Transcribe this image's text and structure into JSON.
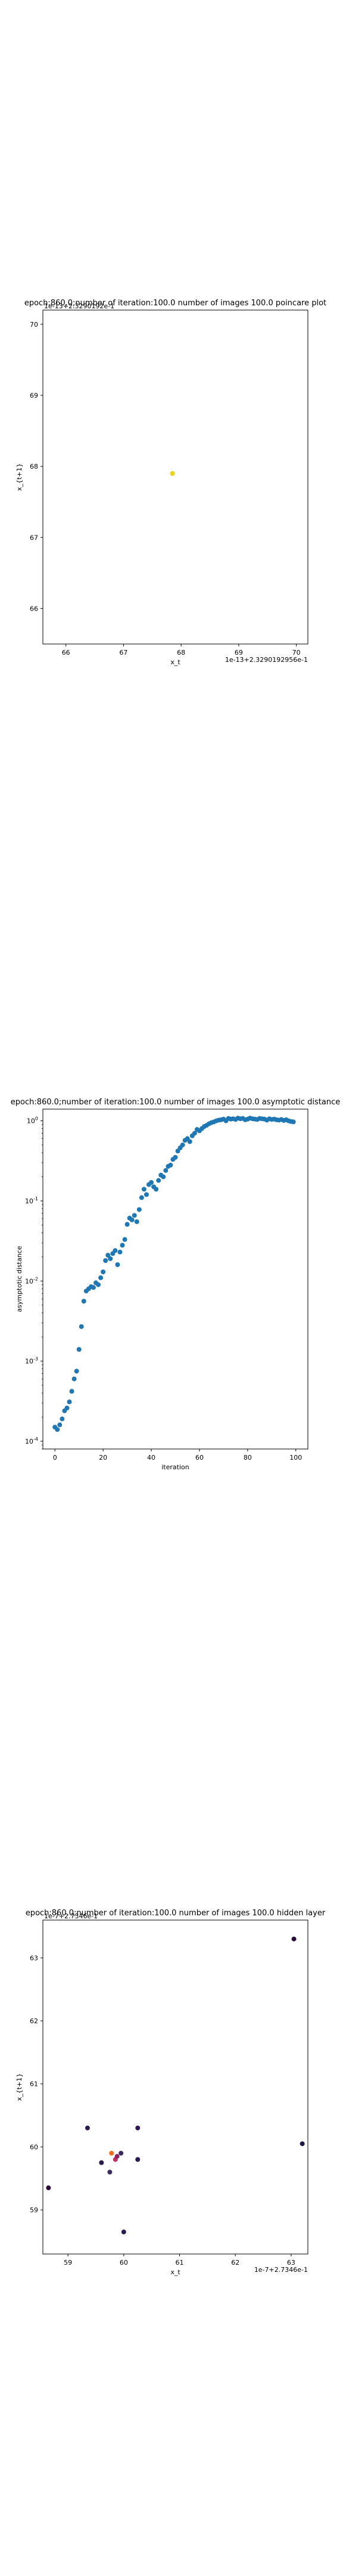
{
  "chart_data": [
    {
      "type": "scatter",
      "title": "epoch:860.0;number of iteration:100.0 number of images 100.0 poincare plot",
      "overlay_text": "1e-13+2.3290192e-1",
      "xlabel": "x_t",
      "ylabel": "x_{t+1}",
      "offset_label": "1e-13+2.3290192956e-1",
      "xlim": [
        65.6,
        70.2
      ],
      "ylim": [
        65.5,
        70.2
      ],
      "xticks": [
        66,
        67,
        68,
        69,
        70
      ],
      "yticks": [
        66,
        67,
        68,
        69,
        70
      ],
      "points": [
        {
          "x": 67.85,
          "y": 67.9,
          "color": "#e8d21f"
        }
      ],
      "grid": false
    },
    {
      "type": "scatter",
      "title": "epoch:860.0;number of iteration:100.0  number of images 100.0 asymptotic distance",
      "xlabel": "iteration",
      "ylabel": "asymptotic distance",
      "xscale": "linear",
      "yscale": "log",
      "xlim": [
        -5,
        105
      ],
      "ylim": [
        8e-05,
        1.4
      ],
      "xticks": [
        0,
        20,
        40,
        60,
        80,
        100
      ],
      "yticks": [
        {
          "value": 0.0001,
          "label": "10^-4"
        },
        {
          "value": 0.001,
          "label": "10^-3"
        },
        {
          "value": 0.01,
          "label": "10^-2"
        },
        {
          "value": 0.1,
          "label": "10^-1"
        },
        {
          "value": 1,
          "label": "10^0"
        }
      ],
      "color": "#1f77b4",
      "x": [
        0,
        1,
        2,
        3,
        4,
        5,
        6,
        7,
        8,
        9,
        10,
        11,
        12,
        13,
        14,
        15,
        16,
        17,
        18,
        19,
        20,
        21,
        22,
        23,
        24,
        25,
        26,
        27,
        28,
        29,
        30,
        31,
        32,
        33,
        34,
        35,
        36,
        37,
        38,
        39,
        40,
        41,
        42,
        43,
        44,
        45,
        46,
        47,
        48,
        49,
        50,
        51,
        52,
        53,
        54,
        55,
        56,
        57,
        58,
        59,
        60,
        61,
        62,
        63,
        64,
        65,
        66,
        67,
        68,
        69,
        70,
        71,
        72,
        73,
        74,
        75,
        76,
        77,
        78,
        79,
        80,
        81,
        82,
        83,
        84,
        85,
        86,
        87,
        88,
        89,
        90,
        91,
        92,
        93,
        94,
        95,
        96,
        97,
        98,
        99
      ],
      "y": [
        0.00015,
        0.00014,
        0.00016,
        0.00019,
        0.00024,
        0.00026,
        0.00031,
        0.00042,
        0.0006,
        0.00075,
        0.0014,
        0.0027,
        0.0056,
        0.0075,
        0.008,
        0.0085,
        0.0083,
        0.0095,
        0.009,
        0.011,
        0.013,
        0.018,
        0.021,
        0.019,
        0.022,
        0.024,
        0.016,
        0.023,
        0.028,
        0.033,
        0.051,
        0.061,
        0.058,
        0.066,
        0.055,
        0.078,
        0.11,
        0.14,
        0.12,
        0.16,
        0.17,
        0.15,
        0.14,
        0.18,
        0.21,
        0.2,
        0.24,
        0.27,
        0.28,
        0.33,
        0.35,
        0.42,
        0.46,
        0.5,
        0.57,
        0.6,
        0.55,
        0.65,
        0.7,
        0.78,
        0.75,
        0.8,
        0.85,
        0.88,
        0.92,
        0.95,
        0.97,
        1.0,
        1.02,
        1.03,
        1.05,
        1.0,
        1.07,
        1.05,
        1.06,
        1.04,
        1.08,
        1.06,
        1.07,
        1.03,
        1.05,
        1.08,
        1.06,
        1.05,
        1.04,
        1.07,
        1.06,
        1.05,
        1.02,
        1.06,
        1.04,
        1.05,
        1.03,
        1.02,
        1.04,
        1.01,
        1.03,
        1.0,
        0.98,
        0.97
      ]
    },
    {
      "type": "scatter",
      "title": "epoch:860.0;number of iteration:100.0  number of images 100.0 hidden layer",
      "overlay_text": "1e-7+2.7346e-1",
      "xlabel": "x_t",
      "ylabel": "x_{t+1}",
      "offset_label": "1e-7+2.7346e-1",
      "xlim": [
        58.55,
        63.3
      ],
      "ylim": [
        58.3,
        63.6
      ],
      "xticks": [
        59,
        60,
        61,
        62,
        63
      ],
      "yticks": [
        59,
        60,
        61,
        62,
        63
      ],
      "grid": false,
      "points": [
        {
          "x": 63.05,
          "y": 63.3,
          "color": "#2a0a38"
        },
        {
          "x": 63.2,
          "y": 60.05,
          "color": "#1a1a40"
        },
        {
          "x": 58.65,
          "y": 59.35,
          "color": "#2a0a38"
        },
        {
          "x": 59.35,
          "y": 60.3,
          "color": "#2a1a50"
        },
        {
          "x": 59.6,
          "y": 59.75,
          "color": "#2a1a50"
        },
        {
          "x": 59.75,
          "y": 59.6,
          "color": "#3a2a60"
        },
        {
          "x": 59.78,
          "y": 59.9,
          "color": "#f07020"
        },
        {
          "x": 59.85,
          "y": 59.8,
          "color": "#c03060"
        },
        {
          "x": 59.88,
          "y": 59.85,
          "color": "#902060"
        },
        {
          "x": 59.95,
          "y": 59.9,
          "color": "#3a2a60"
        },
        {
          "x": 60.0,
          "y": 58.65,
          "color": "#2a1a50"
        },
        {
          "x": 60.25,
          "y": 60.3,
          "color": "#2a1a50"
        },
        {
          "x": 60.25,
          "y": 59.8,
          "color": "#2a1a50"
        }
      ]
    }
  ]
}
